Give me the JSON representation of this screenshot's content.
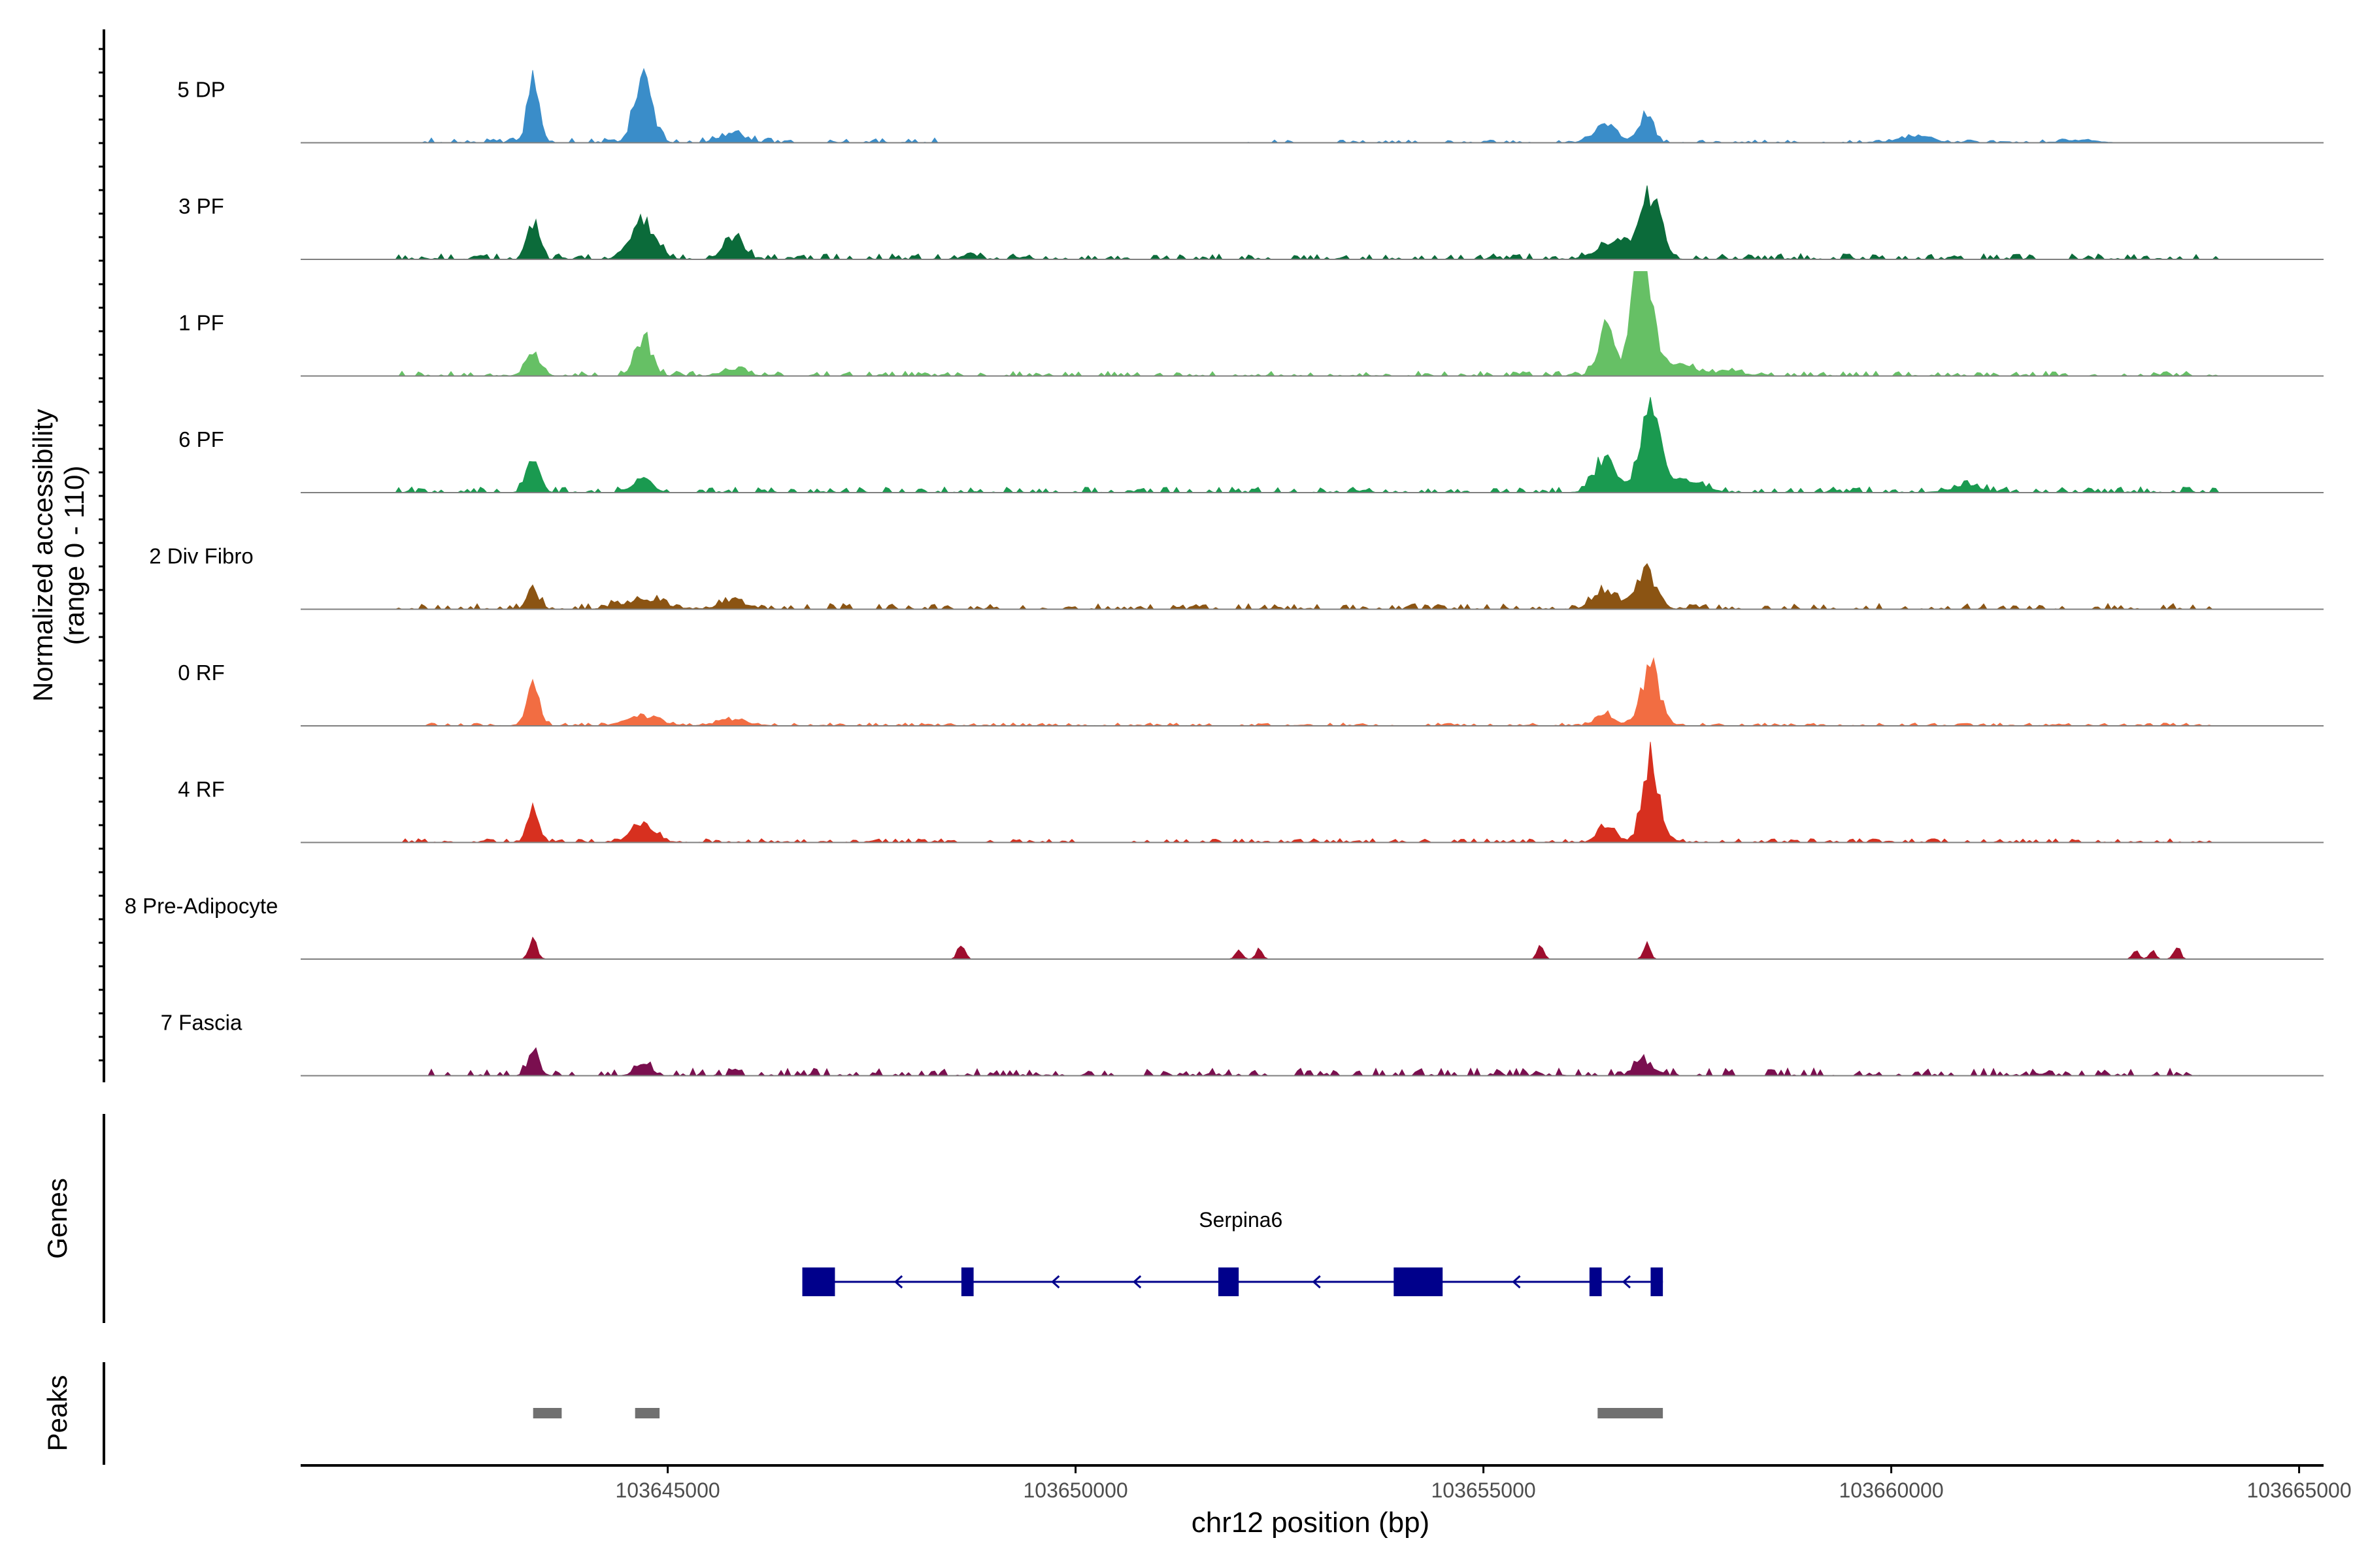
{
  "chart_data": {
    "type": "area",
    "title": "",
    "xlabel": "chr12 position (bp)",
    "ylabel_line1": "Normalized accessibility",
    "ylabel_line2": "(range 0 - 110)",
    "ylim": [
      0,
      110
    ],
    "xlim": [
      103640500,
      103665300
    ],
    "x_ticks": [
      103645000,
      103650000,
      103655000,
      103660000,
      103665000
    ],
    "x_tick_labels": [
      "103645000",
      "103650000",
      "103655000",
      "103660000",
      "103665000"
    ],
    "tracks": [
      {
        "name": "5 DP",
        "color": "#3A8DC9",
        "baseline": 4,
        "peaks": [
          [
            103643350,
            70,
            70
          ],
          [
            103644700,
            110,
            64
          ],
          [
            103645800,
            150,
            10
          ],
          [
            103656500,
            150,
            16
          ],
          [
            103657000,
            80,
            30
          ],
          [
            103660300,
            200,
            7
          ],
          [
            103662300,
            200,
            3
          ]
        ],
        "noise": [
          [
            103642000,
            103648500,
            5
          ],
          [
            103652000,
            103662500,
            3
          ]
        ]
      },
      {
        "name": "3 PF",
        "color": "#0B6B3A",
        "baseline": 4,
        "peaks": [
          [
            103643350,
            70,
            38
          ],
          [
            103644700,
            150,
            40
          ],
          [
            103645800,
            120,
            24
          ],
          [
            103648700,
            80,
            6
          ],
          [
            103656600,
            200,
            20
          ],
          [
            103657050,
            120,
            64
          ]
        ],
        "noise": [
          [
            103641700,
            103664000,
            6
          ]
        ]
      },
      {
        "name": "1 PF",
        "color": "#66C065",
        "baseline": 3,
        "peaks": [
          [
            103643350,
            90,
            26
          ],
          [
            103644700,
            100,
            42
          ],
          [
            103645800,
            150,
            6
          ],
          [
            103656500,
            100,
            50
          ],
          [
            103656950,
            120,
            140
          ],
          [
            103657400,
            200,
            10
          ],
          [
            103658000,
            200,
            4
          ]
        ],
        "noise": [
          [
            103641700,
            103664000,
            5
          ]
        ]
      },
      {
        "name": "6 PF",
        "color": "#1A9A50",
        "baseline": 3,
        "peaks": [
          [
            103643350,
            80,
            38
          ],
          [
            103644700,
            110,
            16
          ],
          [
            103656500,
            130,
            38
          ],
          [
            103657050,
            130,
            80
          ],
          [
            103657500,
            200,
            12
          ],
          [
            103660900,
            200,
            6
          ]
        ],
        "noise": [
          [
            103641700,
            103664000,
            6
          ]
        ]
      },
      {
        "name": "2 Div Fibro",
        "color": "#8B5413",
        "baseline": 3,
        "peaks": [
          [
            103643350,
            70,
            22
          ],
          [
            103644700,
            250,
            10
          ],
          [
            103645800,
            150,
            10
          ],
          [
            103656500,
            150,
            20
          ],
          [
            103657000,
            120,
            40
          ]
        ],
        "noise": [
          [
            103641700,
            103664000,
            6
          ]
        ]
      },
      {
        "name": "0 RF",
        "color": "#F26D42",
        "baseline": 3,
        "peaks": [
          [
            103643350,
            80,
            40
          ],
          [
            103644700,
            200,
            10
          ],
          [
            103645800,
            200,
            6
          ],
          [
            103656500,
            120,
            12
          ],
          [
            103657050,
            110,
            62
          ]
        ],
        "noise": [
          [
            103642000,
            103664000,
            3
          ]
        ]
      },
      {
        "name": "4 RF",
        "color": "#D7301F",
        "baseline": 3,
        "peaks": [
          [
            103643350,
            70,
            32
          ],
          [
            103644700,
            150,
            18
          ],
          [
            103656500,
            100,
            20
          ],
          [
            103657050,
            100,
            88
          ]
        ],
        "noise": [
          [
            103641700,
            103664000,
            4
          ]
        ]
      },
      {
        "name": "8 Pre-Adipocyte",
        "color": "#9E0E2E",
        "baseline": 0,
        "peaks": [
          [
            103643350,
            50,
            20
          ],
          [
            103648600,
            40,
            18
          ],
          [
            103652000,
            40,
            10
          ],
          [
            103652250,
            40,
            10
          ],
          [
            103655700,
            40,
            14
          ],
          [
            103657000,
            40,
            16
          ],
          [
            103663000,
            40,
            8
          ],
          [
            103663200,
            40,
            8
          ],
          [
            103663500,
            40,
            14
          ]
        ],
        "noise": []
      },
      {
        "name": "7 Fascia",
        "color": "#7A0F4F",
        "baseline": 2,
        "peaks": [
          [
            103643350,
            70,
            22
          ],
          [
            103644700,
            100,
            12
          ],
          [
            103656950,
            100,
            16
          ]
        ],
        "noise": [
          [
            103642000,
            103663800,
            8
          ]
        ]
      }
    ],
    "gene": {
      "name": "Serpina6",
      "color": "#00008B",
      "start": 103646650,
      "end": 103657200,
      "strand": "-",
      "exons": [
        [
          103646650,
          103647050
        ],
        [
          103648600,
          103648750
        ],
        [
          103651750,
          103652000
        ],
        [
          103653900,
          103654500
        ],
        [
          103656300,
          103656450
        ],
        [
          103657050,
          103657200
        ]
      ]
    },
    "gene_track_label": "Genes",
    "peaks_track_label": "Peaks",
    "peaks_color": "#707070",
    "peak_regions": [
      [
        103643350,
        103643700
      ],
      [
        103644600,
        103644900
      ],
      [
        103656400,
        103657200
      ]
    ]
  }
}
